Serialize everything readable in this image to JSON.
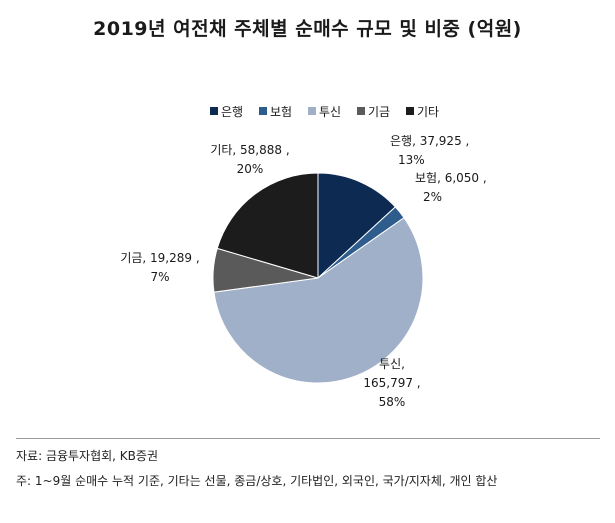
{
  "chart_data": {
    "type": "pie",
    "title": "2019년 여전채 주체별 순매수 규모 및 비중 (억원)",
    "legend_position": "top",
    "slices": [
      {
        "name": "은행",
        "value": 37925,
        "value_label": "37,925",
        "percent_label": "13%",
        "color": "#0d2a52"
      },
      {
        "name": "보험",
        "value": 6050,
        "value_label": "6,050",
        "percent_label": "2%",
        "color": "#2e5c8c"
      },
      {
        "name": "투신",
        "value": 165797,
        "value_label": "165,797",
        "percent_label": "58%",
        "color": "#a0b0c8"
      },
      {
        "name": "기금",
        "value": 19289,
        "value_label": "19,289",
        "percent_label": "7%",
        "color": "#5a5a5a"
      },
      {
        "name": "기타",
        "value": 58888,
        "value_label": "58,888",
        "percent_label": "20%",
        "color": "#1c1c1c"
      }
    ]
  },
  "notes": {
    "source": "자료: 금융투자협회, KB증권",
    "remark": "주: 1~9월 순매수 누적 기준, 기타는 선물, 종금/상호, 기타법인, 외국인, 국가/지자체, 개인 합산"
  }
}
